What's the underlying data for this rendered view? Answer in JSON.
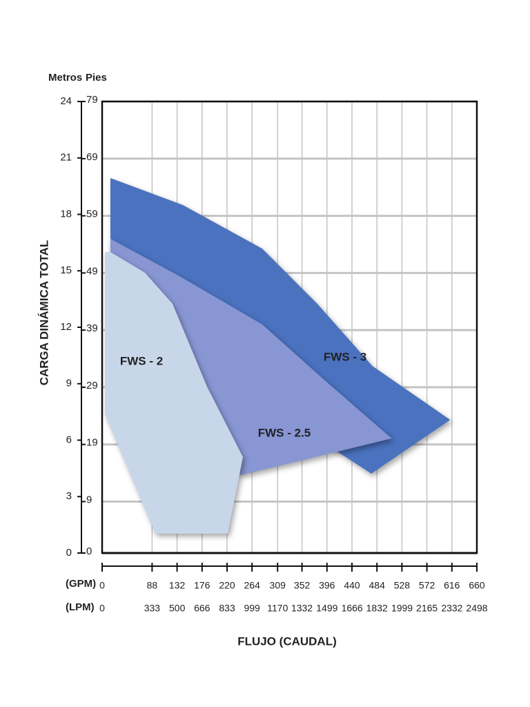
{
  "chart_data": {
    "type": "region",
    "y_label": "CARGA DINÁMICA TOTAL",
    "y_unit": "Metros",
    "y2_unit": "Pies",
    "x_label": "FLUJO (CAUDAL)",
    "x_unit": "(GPM)",
    "x2_unit": "(LPM)",
    "xlim": [
      0,
      660
    ],
    "xticks": [
      0,
      88,
      132,
      176,
      220,
      264,
      309,
      352,
      396,
      440,
      484,
      528,
      572,
      616,
      660
    ],
    "x2lim": [
      0,
      2498
    ],
    "x2ticks": [
      0,
      333,
      500,
      666,
      833,
      999,
      1170,
      1332,
      1499,
      1666,
      1832,
      1999,
      2165,
      2332,
      2498
    ],
    "ylim": [
      0,
      24
    ],
    "yticks": [
      0,
      3,
      6,
      9,
      12,
      15,
      18,
      21,
      24
    ],
    "y2lim": [
      0,
      79
    ],
    "y2ticks": [
      0,
      9,
      19,
      29,
      39,
      49,
      59,
      69,
      79
    ],
    "grid": true,
    "series": [
      {
        "name": "FWS - 3",
        "color": "#4a72bf",
        "x": [
          14.6,
          142,
          282,
          379,
          476,
          613,
          474,
          14.6
        ],
        "y": [
          19.93,
          18.5,
          16.18,
          13.25,
          9.94,
          7.08,
          4.22,
          13.25
        ]
      },
      {
        "name": "FWS - 2.5",
        "color": "#8896d4",
        "x": [
          14.6,
          136,
          282,
          391,
          510,
          245.5,
          14.6
        ],
        "y": [
          16.7,
          14.72,
          12.15,
          9.21,
          6.09,
          4.15,
          8.11
        ]
      },
      {
        "name": "FWS - 2",
        "color": "#c8d6ea",
        "x": [
          14.6,
          75.4,
          124,
          184.8,
          248,
          221,
          93.6,
          4.9,
          4.9
        ],
        "y": [
          16.0,
          14.9,
          13.25,
          8.84,
          5.1,
          1.03,
          1.03,
          7.38,
          16.0
        ]
      }
    ]
  }
}
